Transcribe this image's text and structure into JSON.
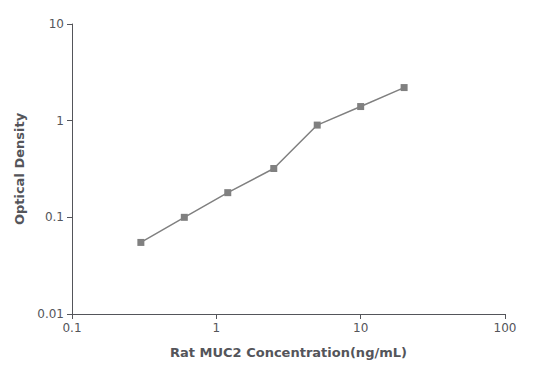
{
  "chart_data": {
    "type": "line",
    "x": [
      0.3,
      0.6,
      1.2,
      2.5,
      5.0,
      10.0,
      20.0
    ],
    "values": [
      0.055,
      0.1,
      0.18,
      0.32,
      0.9,
      1.4,
      2.2
    ],
    "xlabel": "Rat MUC2 Concentration(ng/mL)",
    "ylabel": "Optical Density",
    "xlim": [
      0.1,
      100
    ],
    "ylim": [
      0.01,
      10
    ],
    "xticks": [
      0.1,
      1,
      10,
      100
    ],
    "yticks": [
      0.01,
      0.1,
      1,
      10
    ],
    "log": true,
    "grid": false,
    "color": "#808080",
    "marker": "square",
    "line_style": "solid"
  }
}
